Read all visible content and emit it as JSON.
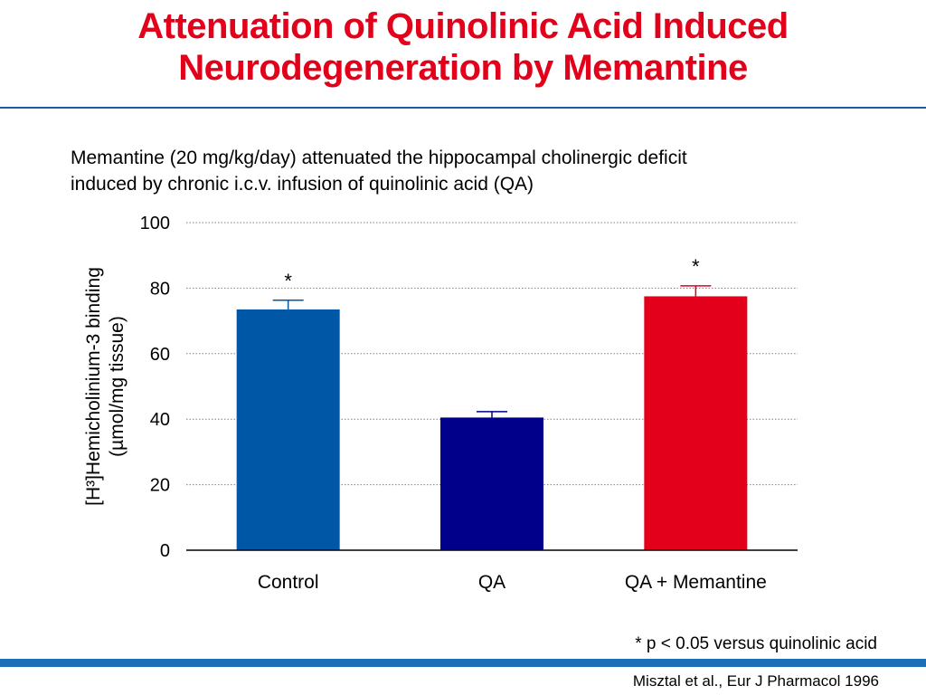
{
  "slide": {
    "title_line1": "Attenuation of Quinolinic Acid Induced",
    "title_line2": "Neurodegeneration by Memantine",
    "subtitle_line1": "Memantine (20 mg/kg/day) attenuated the hippocampal cholinergic deficit",
    "subtitle_line2": "induced by chronic i.c.v. infusion of quinolinic acid (QA)",
    "footnote": "* p < 0.05 versus quinolinic acid",
    "citation": "Misztal et al., Eur J Pharmacol 1996",
    "colors": {
      "title": "#e2001a",
      "accent_band": "#1f6fb8"
    }
  },
  "chart_data": {
    "type": "bar",
    "categories": [
      "Control",
      "QA",
      "QA + Memantine"
    ],
    "values": [
      73.5,
      40.5,
      77.5
    ],
    "error": [
      2.8,
      1.8,
      3.2
    ],
    "significance": [
      "*",
      "",
      "*"
    ],
    "bar_colors": [
      "#0057a6",
      "#00008b",
      "#e2001a"
    ],
    "ylabel_line1": "[H³]Hemicholinium-3 binding",
    "ylabel_line2": "(µmol/mg tissue)",
    "ylim": [
      0,
      100
    ],
    "yticks": [
      0,
      20,
      40,
      60,
      80,
      100
    ],
    "grid": true
  }
}
